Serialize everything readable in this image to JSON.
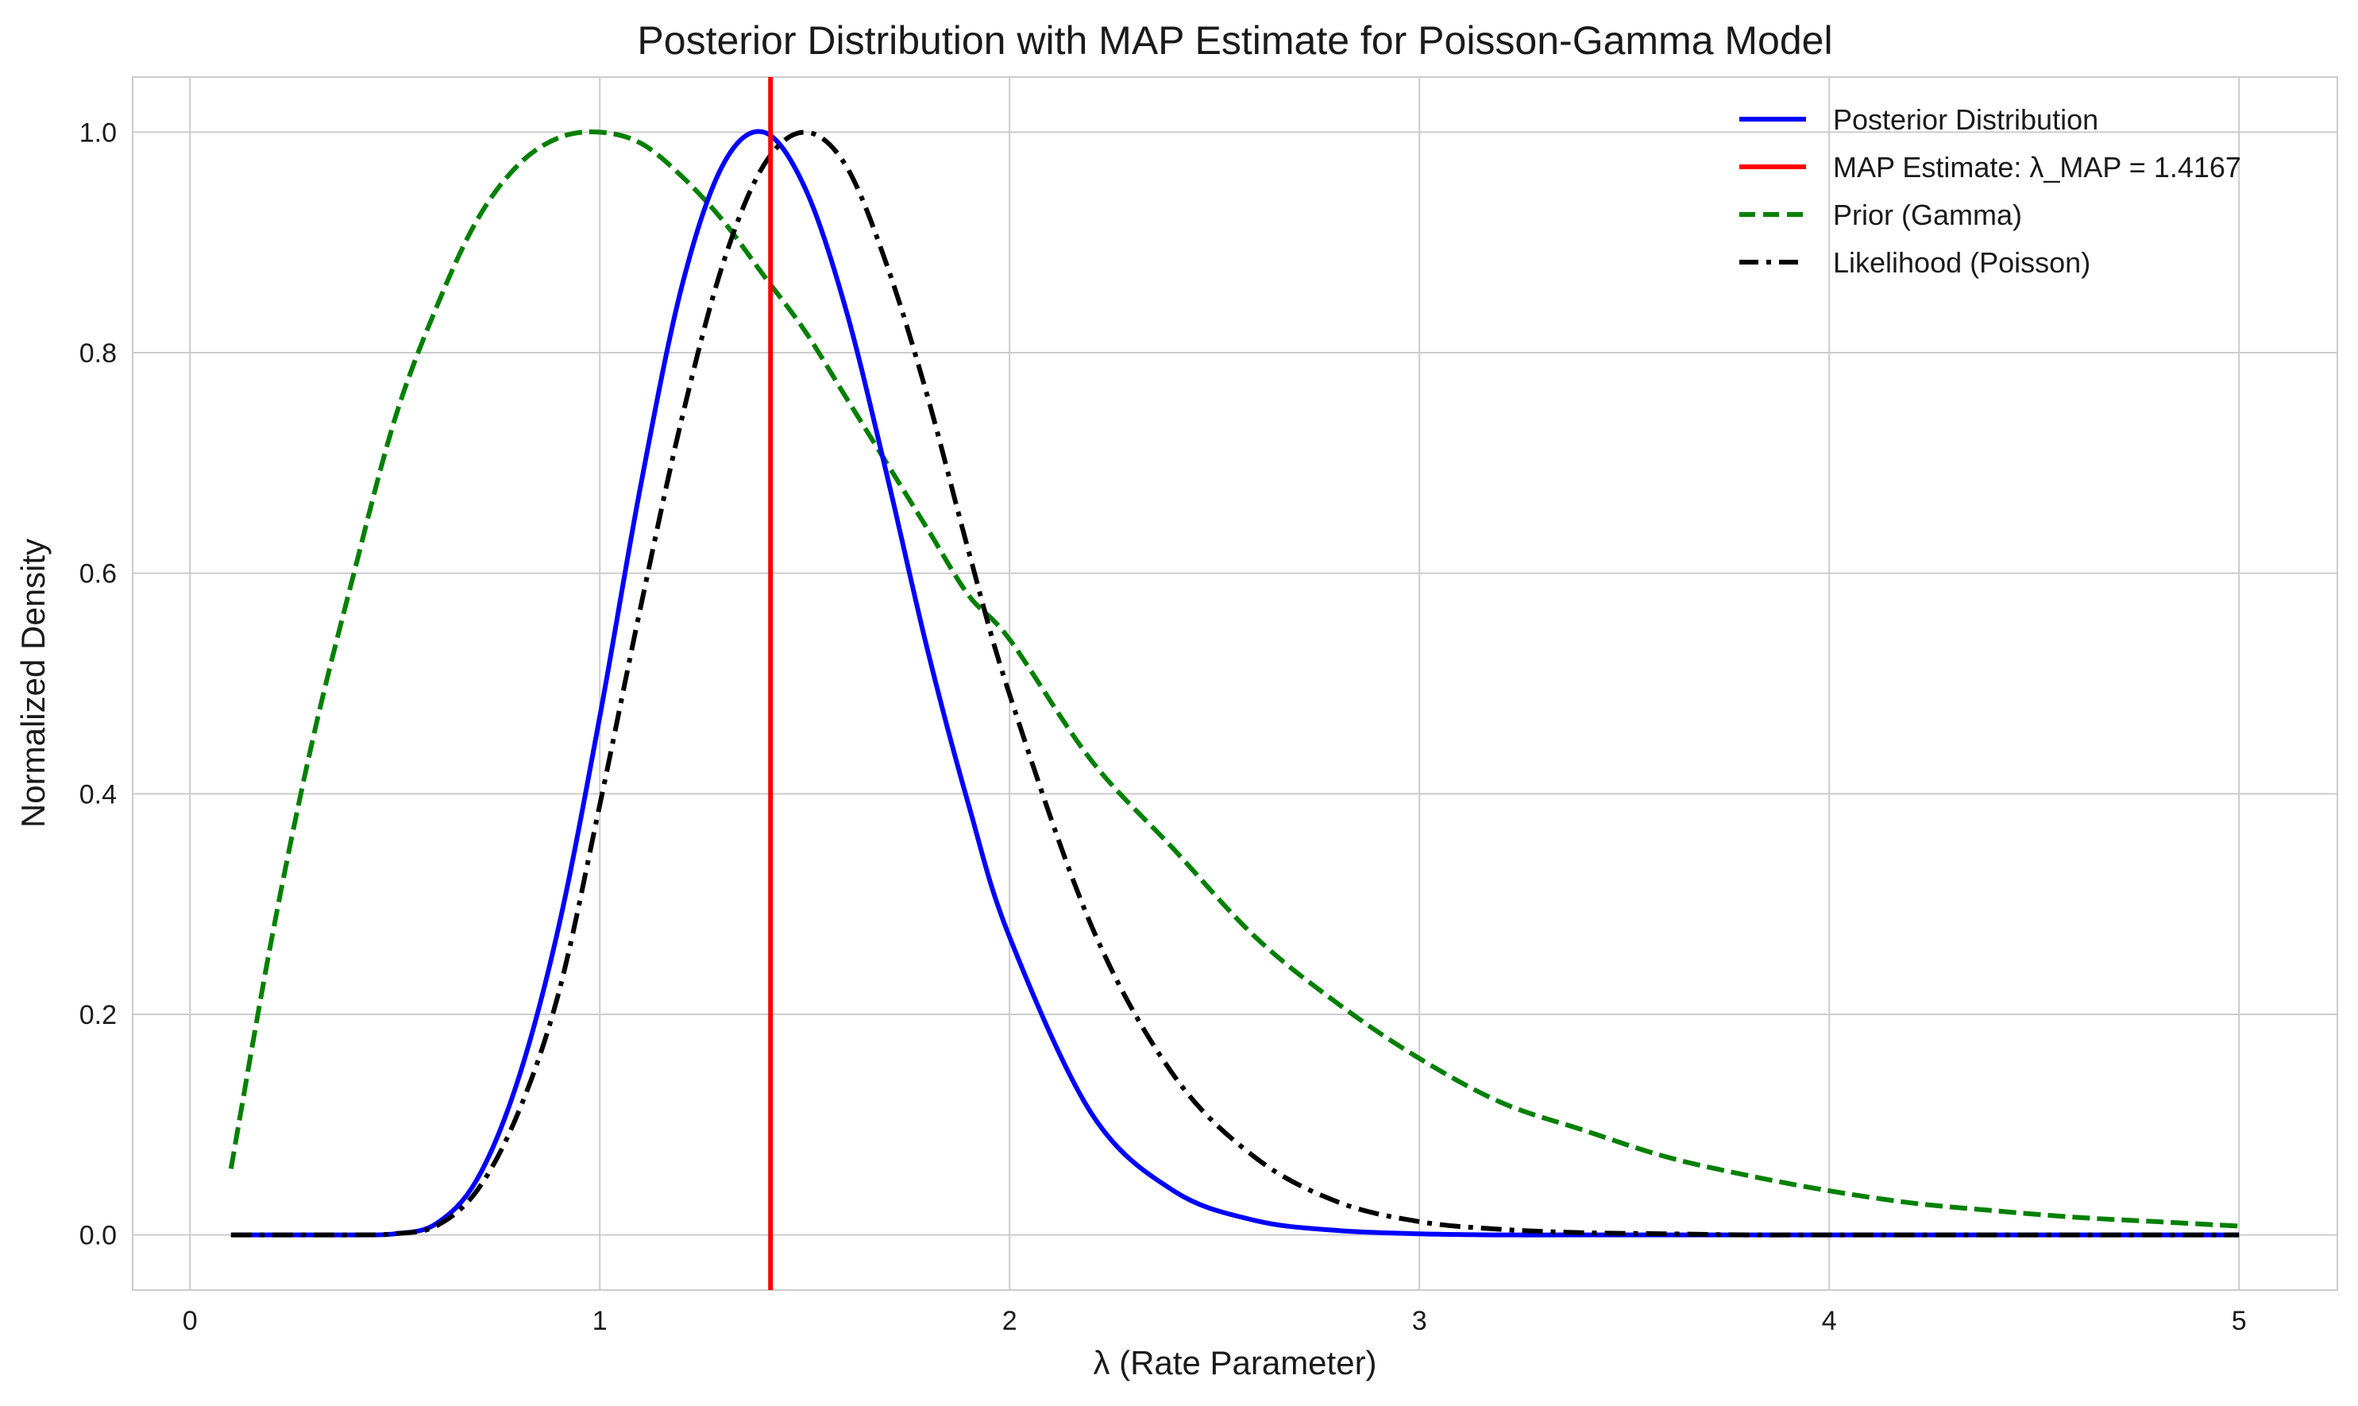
{
  "chart_data": {
    "type": "line",
    "title": "Posterior Distribution with MAP Estimate for Poisson-Gamma Model",
    "xlabel": "λ (Rate Parameter)",
    "ylabel": "Normalized Density",
    "xlim": [
      -0.14,
      5.24
    ],
    "ylim": [
      -0.05,
      1.05
    ],
    "xticks": [
      0,
      1,
      2,
      3,
      4,
      5
    ],
    "yticks": [
      0.0,
      0.2,
      0.4,
      0.6,
      0.8,
      1.0
    ],
    "xtick_labels": [
      "0",
      "1",
      "2",
      "3",
      "4",
      "5"
    ],
    "ytick_labels": [
      "0.0",
      "0.2",
      "0.4",
      "0.6",
      "0.8",
      "1.0"
    ],
    "grid": true,
    "legend_position": "top-right",
    "x": [
      0.1,
      0.2,
      0.3,
      0.4,
      0.5,
      0.6,
      0.7,
      0.8,
      0.9,
      1.0,
      1.1,
      1.2,
      1.3,
      1.4,
      1.5,
      1.6,
      1.7,
      1.8,
      1.9,
      2.0,
      2.2,
      2.4,
      2.6,
      2.8,
      3.0,
      3.2,
      3.4,
      3.6,
      3.8,
      4.0,
      4.2,
      4.4,
      4.6,
      4.8,
      5.0
    ],
    "series": [
      {
        "name": "Posterior Distribution",
        "color": "#0000ff",
        "style": "solid",
        "values": [
          0.0,
          0.0,
          0.0,
          0.0,
          0.001,
          0.01,
          0.05,
          0.14,
          0.28,
          0.47,
          0.68,
          0.86,
          0.97,
          1.0,
          0.95,
          0.84,
          0.69,
          0.53,
          0.39,
          0.27,
          0.11,
          0.04,
          0.013,
          0.004,
          0.001,
          0.0,
          0.0,
          0.0,
          0.0,
          0.0,
          0.0,
          0.0,
          0.0,
          0.0,
          0.0
        ]
      },
      {
        "name": "Prior (Gamma)",
        "color": "#008000",
        "style": "dashed",
        "values": [
          0.06,
          0.27,
          0.45,
          0.6,
          0.74,
          0.84,
          0.92,
          0.97,
          0.995,
          1.0,
          0.99,
          0.96,
          0.92,
          0.87,
          0.82,
          0.76,
          0.7,
          0.64,
          0.58,
          0.54,
          0.43,
          0.35,
          0.27,
          0.21,
          0.16,
          0.12,
          0.095,
          0.071,
          0.054,
          0.04,
          0.029,
          0.022,
          0.016,
          0.012,
          0.008
        ]
      },
      {
        "name": "Likelihood (Poisson)",
        "color": "#000000",
        "style": "dashdot",
        "values": [
          0.0,
          0.0,
          0.0,
          0.0,
          0.001,
          0.008,
          0.04,
          0.11,
          0.22,
          0.39,
          0.57,
          0.74,
          0.88,
          0.97,
          1.0,
          0.97,
          0.88,
          0.76,
          0.62,
          0.49,
          0.28,
          0.145,
          0.07,
          0.03,
          0.012,
          0.005,
          0.002,
          0.001,
          0.0,
          0.0,
          0.0,
          0.0,
          0.0,
          0.0,
          0.0
        ]
      }
    ],
    "vlines": [
      {
        "name": "MAP Estimate: λ_MAP = 1.4167",
        "x": 1.4167,
        "color": "#ff0000"
      }
    ],
    "legend": [
      {
        "label": "Posterior Distribution",
        "color": "#0000ff",
        "style": "solid"
      },
      {
        "label": "MAP Estimate: λ_MAP = 1.4167",
        "color": "#ff0000",
        "style": "solid"
      },
      {
        "label": "Prior (Gamma)",
        "color": "#008000",
        "style": "dashed"
      },
      {
        "label": "Likelihood (Poisson)",
        "color": "#000000",
        "style": "dashdot"
      }
    ]
  }
}
